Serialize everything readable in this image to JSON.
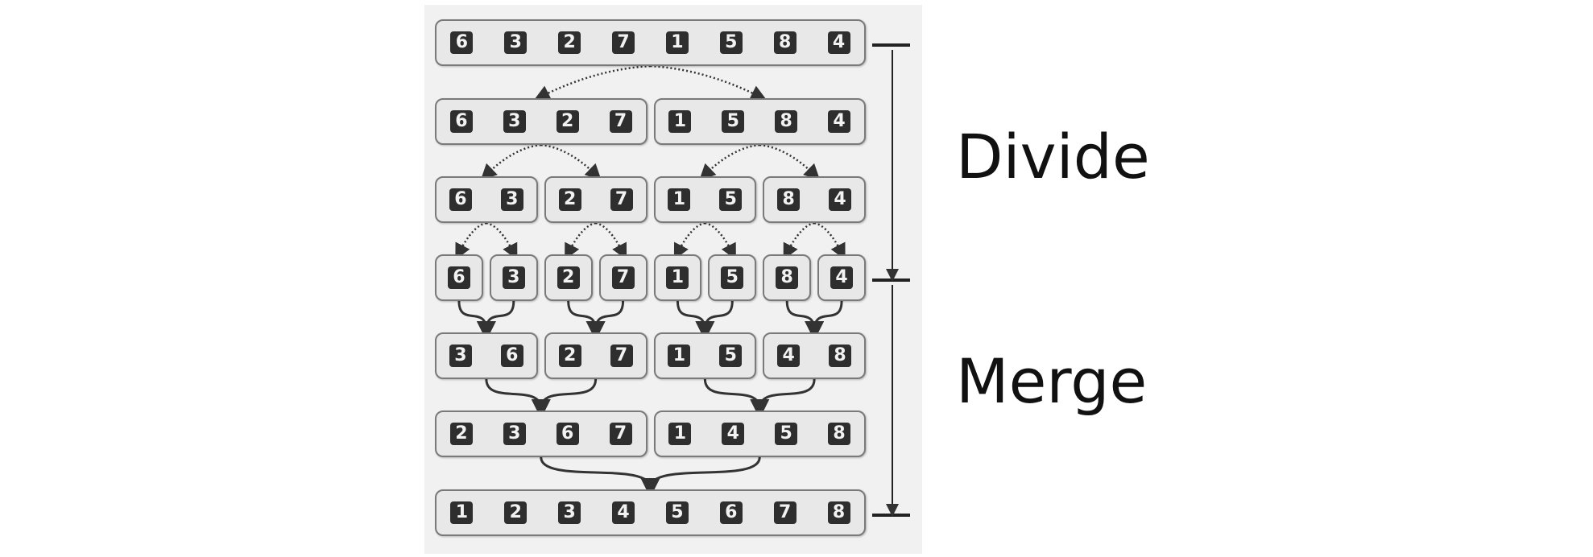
{
  "colors": {
    "panel": "#f1f1f1",
    "box": "#e8e8e8",
    "box_border": "#7a7a7a",
    "digit_bg": "#2e2e2e",
    "digit_fg": "#f2f2f2",
    "arrow": "#333333"
  },
  "phases": {
    "divide_label": "Divide",
    "merge_label": "Merge"
  },
  "rows": [
    [
      [
        6,
        3,
        2,
        7,
        1,
        5,
        8,
        4
      ]
    ],
    [
      [
        6,
        3,
        2,
        7
      ],
      [
        1,
        5,
        8,
        4
      ]
    ],
    [
      [
        6,
        3
      ],
      [
        2,
        7
      ],
      [
        1,
        5
      ],
      [
        8,
        4
      ]
    ],
    [
      [
        6
      ],
      [
        3
      ],
      [
        2
      ],
      [
        7
      ],
      [
        1
      ],
      [
        5
      ],
      [
        8
      ],
      [
        4
      ]
    ],
    [
      [
        3,
        6
      ],
      [
        2,
        7
      ],
      [
        1,
        5
      ],
      [
        4,
        8
      ]
    ],
    [
      [
        2,
        3,
        6,
        7
      ],
      [
        1,
        4,
        5,
        8
      ]
    ],
    [
      [
        1,
        2,
        3,
        4,
        5,
        6,
        7,
        8
      ]
    ]
  ]
}
